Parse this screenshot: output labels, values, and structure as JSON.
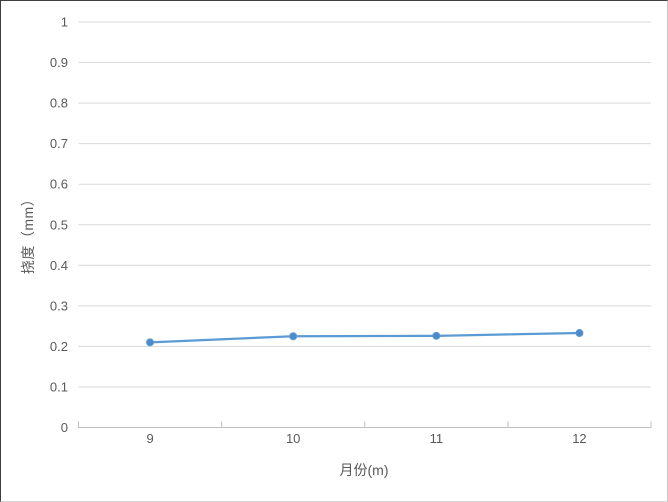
{
  "chart_data": {
    "type": "line",
    "title": "",
    "xlabel": "月份(m)",
    "ylabel": "挠度（mm）",
    "categories": [
      "9",
      "10",
      "11",
      "12"
    ],
    "values": [
      0.21,
      0.225,
      0.226,
      0.233
    ],
    "ylim": [
      0,
      1
    ],
    "ytick_step": 0.1,
    "ytick_labels": [
      "0",
      "0.1",
      "0.2",
      "0.3",
      "0.4",
      "0.5",
      "0.6",
      "0.7",
      "0.8",
      "0.9",
      "1"
    ],
    "grid": true,
    "legend": false,
    "marker_shape": "circle",
    "colors": {
      "line": "#5B9BD5",
      "marker": "#4E8AC8",
      "gridline": "#D9D9D9",
      "axis_line": "#BFBFBF",
      "tick_text": "#595959",
      "background": "#FFFFFF"
    }
  }
}
